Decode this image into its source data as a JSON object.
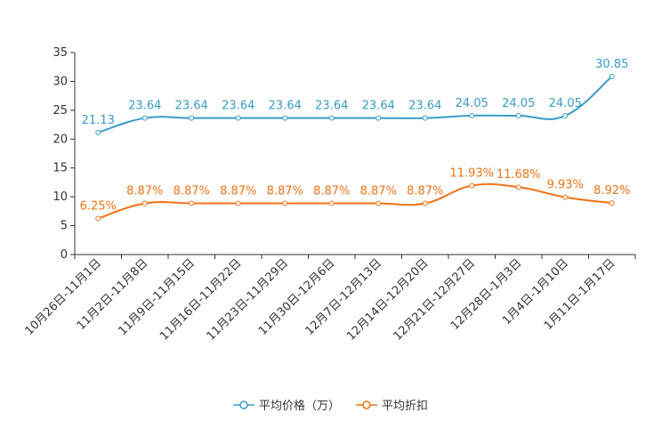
{
  "chart_data": {
    "type": "line",
    "title": "",
    "xlabel": "",
    "ylabel": "",
    "ylim": [
      0,
      35
    ],
    "yticks": [
      0,
      5,
      10,
      15,
      20,
      25,
      30,
      35
    ],
    "ytick_labels": [
      "0",
      "5",
      "10",
      "15",
      "20",
      "25",
      "30",
      "35"
    ],
    "grid": false,
    "legend_position": "bottom-center",
    "categories": [
      "10月26日-11月1日",
      "11月2日-11月8日",
      "11月9日-11月15日",
      "11月16日-11月22日",
      "11月23日-11月29日",
      "11月30日-12月6日",
      "12月7日-12月13日",
      "12月14日-12月20日",
      "12月21日-12月27日",
      "12月28日-1月3日",
      "1月4日-1月10日",
      "1月11日-1月17日"
    ],
    "series": [
      {
        "name": "平均价格（万）",
        "color": "#3a9bc9",
        "values": [
          21.13,
          23.64,
          23.64,
          23.64,
          23.64,
          23.64,
          23.64,
          23.64,
          24.05,
          24.05,
          24.05,
          30.85
        ],
        "labels": [
          "21.13",
          "23.64",
          "23.64",
          "23.64",
          "23.64",
          "23.64",
          "23.64",
          "23.64",
          "24.05",
          "24.05",
          "24.05",
          "30.85"
        ]
      },
      {
        "name": "平均折扣",
        "color": "#f07316",
        "values": [
          6.25,
          8.87,
          8.87,
          8.87,
          8.87,
          8.87,
          8.87,
          8.87,
          11.93,
          11.68,
          9.93,
          8.92
        ],
        "labels": [
          "6.25%",
          "8.87%",
          "8.87%",
          "8.87%",
          "8.87%",
          "8.87%",
          "8.87%",
          "8.87%",
          "11.93%",
          "11.68%",
          "9.93%",
          "8.92%"
        ]
      }
    ]
  }
}
